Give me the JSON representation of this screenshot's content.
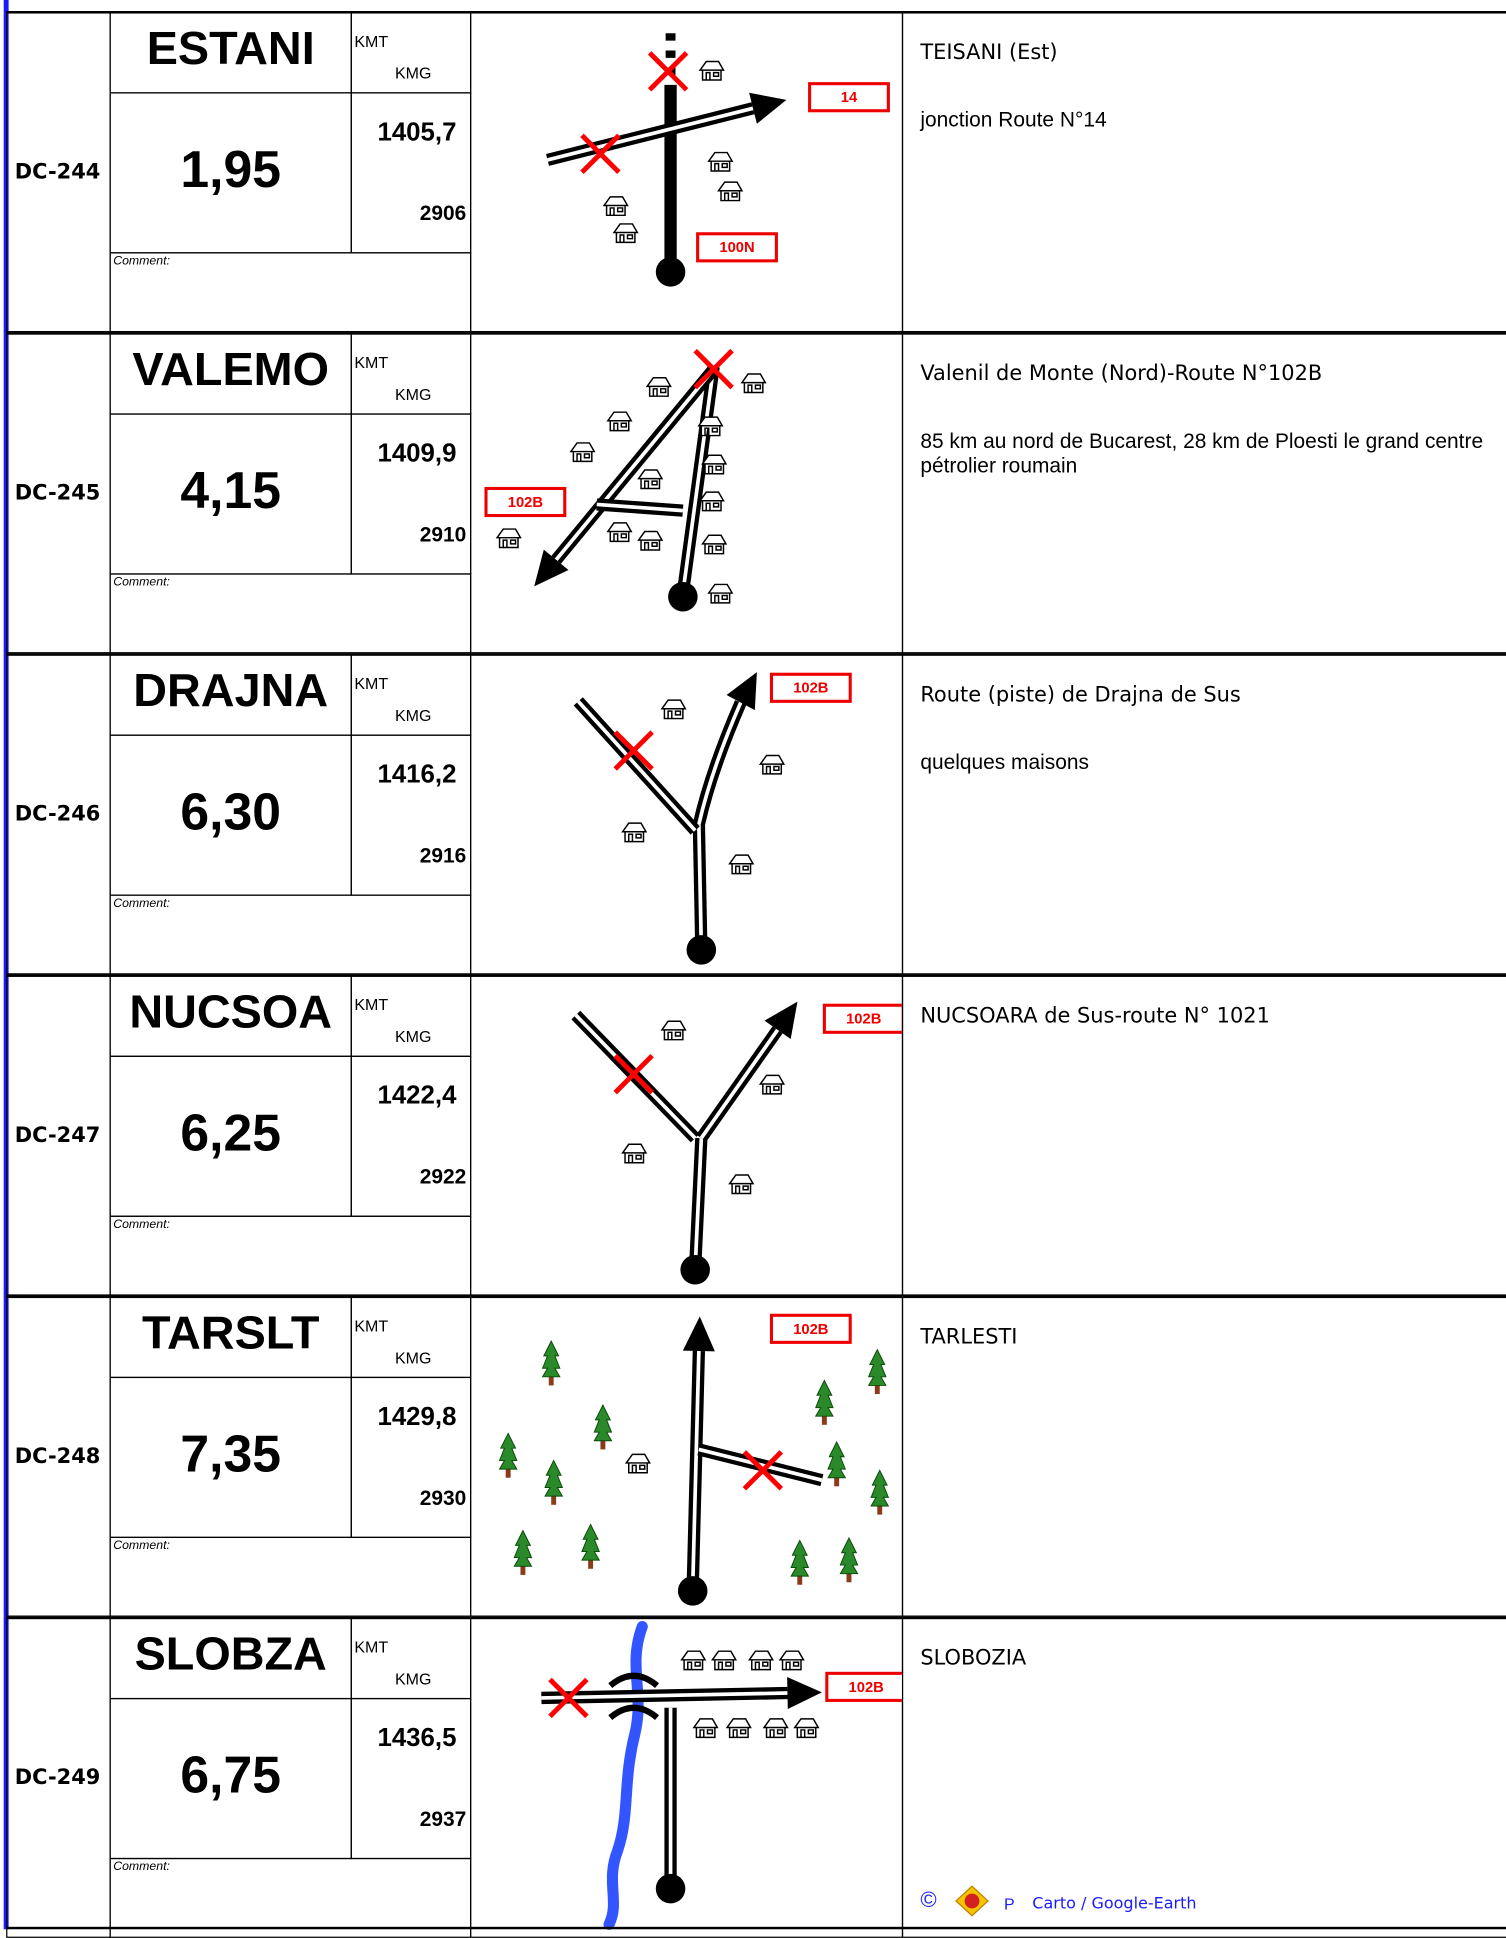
{
  "rows": [
    {
      "id": "DC-244",
      "name": "ESTANI",
      "kmt_label": "KMT",
      "kmg_label": "KMG",
      "distance": "1,95",
      "kmt": "1405,7",
      "kmg": "2906",
      "comment_label": "Comment:",
      "place": "TEISANI (Est)",
      "note": "jonction Route N°14",
      "road_labels": [
        "14",
        "100N"
      ]
    },
    {
      "id": "DC-245",
      "name": "VALEMO",
      "kmt_label": "KMT",
      "kmg_label": "KMG",
      "distance": "4,15",
      "kmt": "1409,9",
      "kmg": "2910",
      "comment_label": "Comment:",
      "place": "Valenil de Monte (Nord)-Route N°102B",
      "note": "85 km au nord de Bucarest, 28 km de Ploesti le grand centre pétrolier roumain",
      "road_labels": [
        "102B"
      ]
    },
    {
      "id": "DC-246",
      "name": "DRAJNA",
      "kmt_label": "KMT",
      "kmg_label": "KMG",
      "distance": "6,30",
      "kmt": "1416,2",
      "kmg": "2916",
      "comment_label": "Comment:",
      "place": "Route (piste) de Drajna de Sus",
      "note": "quelques maisons",
      "road_labels": [
        "102B"
      ]
    },
    {
      "id": "DC-247",
      "name": "NUCSOA",
      "kmt_label": "KMT",
      "kmg_label": "KMG",
      "distance": "6,25",
      "kmt": "1422,4",
      "kmg": "2922",
      "comment_label": "Comment:",
      "place": "NUCSOARA de Sus-route N° 1021",
      "road_labels": [
        "102B"
      ]
    },
    {
      "id": "DC-248",
      "name": "TARSLT",
      "kmt_label": "KMT",
      "kmg_label": "KMG",
      "distance": "7,35",
      "kmt": "1429,8",
      "kmg": "2930",
      "comment_label": "Comment:",
      "place": "TARLESTI",
      "road_labels": [
        "102B"
      ]
    },
    {
      "id": "DC-249",
      "name": "SLOBZA",
      "kmt_label": "KMT",
      "kmg_label": "KMG",
      "distance": "6,75",
      "kmt": "1436,5",
      "kmg": "2937",
      "comment_label": "Comment:",
      "place": "SLOBOZIA",
      "road_labels": [
        "102B"
      ]
    }
  ],
  "footer": {
    "copyright": "©",
    "logo_letter": "P",
    "credit": "Carto / Google-Earth"
  }
}
